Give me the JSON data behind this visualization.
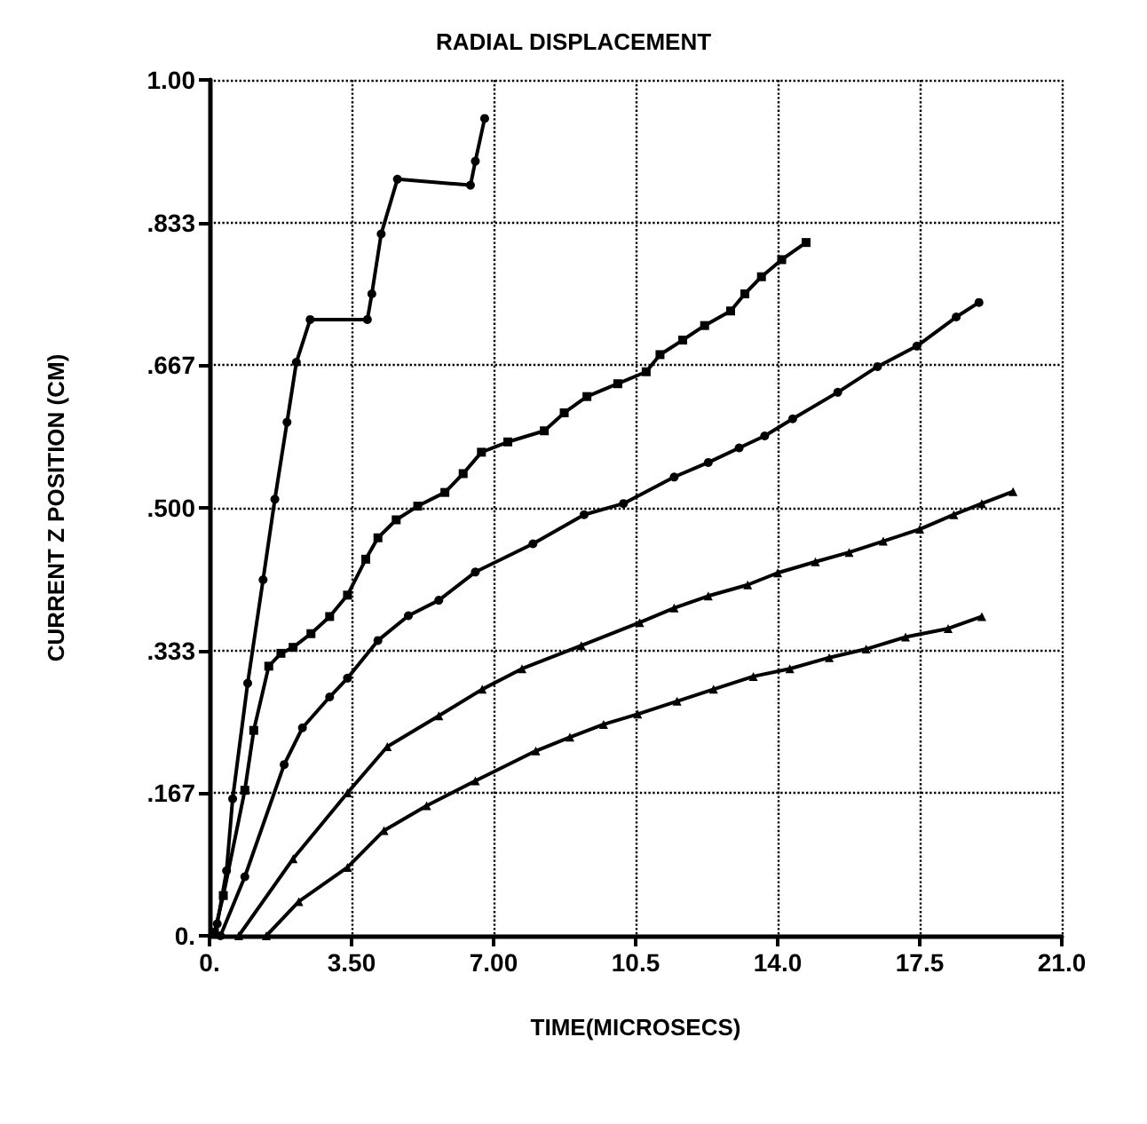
{
  "chart_data": {
    "type": "line",
    "title": "RADIAL DISPLACEMENT",
    "xlabel": "TIME(MICROSECS)",
    "ylabel": "CURRENT Z POSITION (CM)",
    "xlim": [
      0,
      21
    ],
    "ylim": [
      0,
      1
    ],
    "xticks": [
      {
        "value": 0,
        "label": "0."
      },
      {
        "value": 3.5,
        "label": "3.50"
      },
      {
        "value": 7,
        "label": "7.00"
      },
      {
        "value": 10.5,
        "label": "10.5"
      },
      {
        "value": 14,
        "label": "14.0"
      },
      {
        "value": 17.5,
        "label": "17.5"
      },
      {
        "value": 21,
        "label": "21.0"
      }
    ],
    "yticks": [
      {
        "value": 0,
        "label": "0."
      },
      {
        "value": 0.167,
        "label": ".167"
      },
      {
        "value": 0.333,
        "label": ".333"
      },
      {
        "value": 0.5,
        "label": ".500"
      },
      {
        "value": 0.667,
        "label": ".667"
      },
      {
        "value": 0.833,
        "label": ".833"
      },
      {
        "value": 1,
        "label": "1.00"
      }
    ],
    "grid": true,
    "line_style": "solid",
    "series": [
      {
        "color": "#000000",
        "marker": "circle",
        "x": [
          0.19,
          0.42,
          0.57,
          0.94,
          1.32,
          1.61,
          1.91,
          2.14,
          2.48,
          3.89,
          4.0,
          4.23,
          4.63,
          6.43,
          6.55,
          6.78
        ],
        "values": [
          0.014,
          0.076,
          0.16,
          0.295,
          0.416,
          0.51,
          0.6,
          0.67,
          0.72,
          0.72,
          0.75,
          0.82,
          0.884,
          0.877,
          0.905,
          0.955
        ]
      },
      {
        "color": "#000000",
        "marker": "square",
        "x": [
          0.12,
          0.34,
          0.87,
          1.09,
          1.46,
          1.76,
          2.06,
          2.5,
          2.96,
          3.4,
          3.85,
          4.15,
          4.6,
          5.13,
          5.8,
          6.25,
          6.7,
          7.35,
          8.25,
          8.74,
          9.3,
          10.06,
          10.76,
          11.1,
          11.66,
          12.2,
          12.84,
          13.19,
          13.6,
          14.1,
          14.7
        ],
        "values": [
          0.004,
          0.047,
          0.17,
          0.24,
          0.315,
          0.33,
          0.337,
          0.353,
          0.373,
          0.398,
          0.44,
          0.465,
          0.486,
          0.502,
          0.518,
          0.54,
          0.565,
          0.577,
          0.59,
          0.611,
          0.63,
          0.645,
          0.659,
          0.679,
          0.696,
          0.713,
          0.73,
          0.75,
          0.77,
          0.79,
          0.81
        ]
      },
      {
        "color": "#000000",
        "marker": "circle",
        "x": [
          0.27,
          0.87,
          1.84,
          2.29,
          2.96,
          3.4,
          4.15,
          4.9,
          5.65,
          6.55,
          7.97,
          9.23,
          10.2,
          11.45,
          12.29,
          13.05,
          13.68,
          14.37,
          15.48,
          16.46,
          17.43,
          18.4,
          18.96
        ],
        "values": [
          0,
          0.069,
          0.2,
          0.243,
          0.279,
          0.301,
          0.345,
          0.374,
          0.392,
          0.425,
          0.458,
          0.492,
          0.505,
          0.536,
          0.553,
          0.57,
          0.584,
          0.604,
          0.635,
          0.665,
          0.689,
          0.723,
          0.74
        ]
      },
      {
        "color": "#000000",
        "marker": "triangle",
        "x": [
          0.72,
          2.06,
          3.4,
          4.38,
          5.65,
          6.72,
          7.7,
          9.16,
          10.6,
          11.45,
          12.29,
          13.26,
          14.0,
          14.93,
          15.76,
          16.6,
          17.5,
          18.34,
          19.03,
          19.8
        ],
        "values": [
          0,
          0.09,
          0.167,
          0.221,
          0.257,
          0.288,
          0.312,
          0.339,
          0.366,
          0.383,
          0.397,
          0.41,
          0.424,
          0.437,
          0.448,
          0.461,
          0.475,
          0.492,
          0.505,
          0.519
        ]
      },
      {
        "color": "#000000",
        "marker": "triangle",
        "x": [
          1.4,
          2.2,
          3.4,
          4.3,
          5.35,
          6.55,
          8.04,
          8.88,
          9.71,
          10.55,
          11.52,
          12.42,
          13.4,
          14.3,
          15.27,
          16.18,
          17.15,
          18.2,
          19.03
        ],
        "values": [
          0,
          0.04,
          0.08,
          0.123,
          0.152,
          0.181,
          0.216,
          0.232,
          0.247,
          0.259,
          0.274,
          0.288,
          0.303,
          0.312,
          0.325,
          0.335,
          0.349,
          0.359,
          0.373
        ]
      }
    ]
  }
}
